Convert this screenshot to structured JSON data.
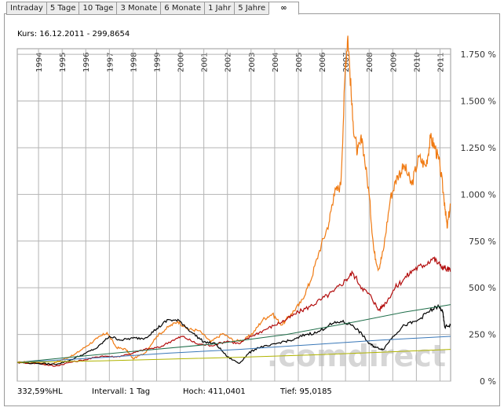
{
  "tabs": [
    {
      "label": "Intraday",
      "active": false
    },
    {
      "label": "5 Tage",
      "active": false
    },
    {
      "label": "10 Tage",
      "active": false
    },
    {
      "label": "3 Monate",
      "active": false
    },
    {
      "label": "6 Monate",
      "active": false
    },
    {
      "label": "1 Jahr",
      "active": false
    },
    {
      "label": "5 Jahre",
      "active": false
    },
    {
      "label": "∞",
      "active": true
    }
  ],
  "header": {
    "kurs": "Kurs: 16.12.2011 - 299,8654"
  },
  "footer": {
    "hl": "332,59%HL",
    "intervall": "Intervall: 1 Tag",
    "hoch": "Hoch: 411,0401",
    "tief": "Tief: 95,0185"
  },
  "watermark": ".comdirect",
  "colors": {
    "orange": "#f07a12",
    "red": "#b30d0d",
    "black": "#000000",
    "green": "#1f6e4a",
    "blue": "#3a78b8",
    "olive": "#b0b400",
    "grid": "#b4b4b4"
  },
  "chart_data": {
    "type": "line",
    "x_tick_labels": [
      "1994",
      "1995",
      "1996",
      "1997",
      "1998",
      "1999",
      "2000",
      "2001",
      "2002",
      "2003",
      "2004",
      "2005",
      "2006",
      "2007",
      "2008",
      "2009",
      "2010",
      "2011"
    ],
    "y_tick_labels": [
      "0 %",
      "250 %",
      "500 %",
      "750 %",
      "1.000 %",
      "1.250 %",
      "1.500 %",
      "1.750 %"
    ],
    "y_ticks": [
      0,
      250,
      500,
      750,
      1000,
      1250,
      1500,
      1750
    ],
    "ylim": [
      0,
      1780
    ],
    "xlim": [
      1993.6,
      2011.95
    ],
    "grid": true,
    "series": [
      {
        "color": "orange",
        "points": [
          [
            1993.6,
            100
          ],
          [
            1994.2,
            105
          ],
          [
            1995.0,
            90
          ],
          [
            1995.5,
            115
          ],
          [
            1996.0,
            140
          ],
          [
            1996.5,
            185
          ],
          [
            1997.0,
            230
          ],
          [
            1997.4,
            260
          ],
          [
            1997.8,
            180
          ],
          [
            1998.2,
            170
          ],
          [
            1998.5,
            120
          ],
          [
            1999.0,
            150
          ],
          [
            1999.5,
            240
          ],
          [
            2000.0,
            290
          ],
          [
            2000.4,
            320
          ],
          [
            2000.8,
            280
          ],
          [
            2001.3,
            270
          ],
          [
            2001.8,
            210
          ],
          [
            2002.3,
            255
          ],
          [
            2002.8,
            215
          ],
          [
            2003.2,
            220
          ],
          [
            2003.6,
            260
          ],
          [
            2004.0,
            330
          ],
          [
            2004.4,
            360
          ],
          [
            2004.8,
            300
          ],
          [
            2005.2,
            360
          ],
          [
            2005.6,
            420
          ],
          [
            2006.0,
            530
          ],
          [
            2006.4,
            700
          ],
          [
            2006.8,
            850
          ],
          [
            2007.0,
            1000
          ],
          [
            2007.3,
            1050
          ],
          [
            2007.5,
            1700
          ],
          [
            2007.6,
            1850
          ],
          [
            2007.8,
            1400
          ],
          [
            2008.0,
            1220
          ],
          [
            2008.2,
            1300
          ],
          [
            2008.5,
            1000
          ],
          [
            2008.7,
            700
          ],
          [
            2008.9,
            600
          ],
          [
            2009.1,
            700
          ],
          [
            2009.4,
            980
          ],
          [
            2009.7,
            1100
          ],
          [
            2010.0,
            1150
          ],
          [
            2010.3,
            1050
          ],
          [
            2010.6,
            1200
          ],
          [
            2010.9,
            1150
          ],
          [
            2011.1,
            1300
          ],
          [
            2011.3,
            1250
          ],
          [
            2011.5,
            1150
          ],
          [
            2011.7,
            950
          ],
          [
            2011.8,
            820
          ],
          [
            2011.95,
            950
          ]
        ]
      },
      {
        "color": "red",
        "points": [
          [
            1993.6,
            100
          ],
          [
            1994.5,
            95
          ],
          [
            1995.2,
            80
          ],
          [
            1995.8,
            100
          ],
          [
            1996.5,
            115
          ],
          [
            1997.2,
            135
          ],
          [
            1997.8,
            130
          ],
          [
            1998.5,
            150
          ],
          [
            1999.0,
            170
          ],
          [
            1999.6,
            180
          ],
          [
            2000.2,
            220
          ],
          [
            2000.6,
            240
          ],
          [
            2001.2,
            200
          ],
          [
            2001.8,
            190
          ],
          [
            2002.5,
            215
          ],
          [
            2003.0,
            200
          ],
          [
            2003.5,
            240
          ],
          [
            2004.0,
            270
          ],
          [
            2004.5,
            300
          ],
          [
            2005.0,
            330
          ],
          [
            2005.5,
            370
          ],
          [
            2006.0,
            400
          ],
          [
            2006.5,
            440
          ],
          [
            2007.0,
            480
          ],
          [
            2007.5,
            540
          ],
          [
            2007.8,
            580
          ],
          [
            2008.2,
            500
          ],
          [
            2008.6,
            450
          ],
          [
            2008.9,
            380
          ],
          [
            2009.2,
            420
          ],
          [
            2009.6,
            500
          ],
          [
            2010.0,
            550
          ],
          [
            2010.4,
            600
          ],
          [
            2010.8,
            620
          ],
          [
            2011.2,
            660
          ],
          [
            2011.5,
            620
          ],
          [
            2011.8,
            600
          ],
          [
            2011.95,
            590
          ]
        ]
      },
      {
        "color": "black",
        "points": [
          [
            1993.6,
            100
          ],
          [
            1994.5,
            95
          ],
          [
            1995.2,
            90
          ],
          [
            1995.8,
            110
          ],
          [
            1996.5,
            150
          ],
          [
            1997.0,
            180
          ],
          [
            1997.5,
            240
          ],
          [
            1998.0,
            220
          ],
          [
            1998.5,
            230
          ],
          [
            1999.0,
            230
          ],
          [
            1999.5,
            280
          ],
          [
            2000.0,
            330
          ],
          [
            2000.5,
            320
          ],
          [
            2001.0,
            260
          ],
          [
            2001.5,
            210
          ],
          [
            2002.0,
            200
          ],
          [
            2002.5,
            130
          ],
          [
            2003.0,
            95
          ],
          [
            2003.4,
            150
          ],
          [
            2003.8,
            180
          ],
          [
            2004.3,
            190
          ],
          [
            2004.8,
            210
          ],
          [
            2005.3,
            220
          ],
          [
            2005.8,
            250
          ],
          [
            2006.3,
            260
          ],
          [
            2006.8,
            300
          ],
          [
            2007.3,
            320
          ],
          [
            2007.8,
            300
          ],
          [
            2008.2,
            250
          ],
          [
            2008.5,
            200
          ],
          [
            2008.8,
            180
          ],
          [
            2009.1,
            170
          ],
          [
            2009.5,
            240
          ],
          [
            2010.0,
            300
          ],
          [
            2010.5,
            320
          ],
          [
            2011.0,
            370
          ],
          [
            2011.4,
            400
          ],
          [
            2011.6,
            380
          ],
          [
            2011.7,
            290
          ],
          [
            2011.95,
            300
          ]
        ]
      },
      {
        "color": "green",
        "points": [
          [
            1993.6,
            100
          ],
          [
            1996,
            130
          ],
          [
            1999,
            165
          ],
          [
            2002,
            200
          ],
          [
            2005,
            250
          ],
          [
            2008,
            320
          ],
          [
            2010,
            370
          ],
          [
            2011.5,
            400
          ],
          [
            2011.95,
            410
          ]
        ]
      },
      {
        "color": "blue",
        "points": [
          [
            1993.6,
            100
          ],
          [
            1997,
            125
          ],
          [
            2000,
            150
          ],
          [
            2003,
            170
          ],
          [
            2006,
            195
          ],
          [
            2009,
            220
          ],
          [
            2011.95,
            240
          ]
        ]
      },
      {
        "color": "olive",
        "points": [
          [
            1993.6,
            100
          ],
          [
            1997,
            108
          ],
          [
            2000,
            118
          ],
          [
            2003,
            128
          ],
          [
            2006,
            140
          ],
          [
            2009,
            155
          ],
          [
            2011.95,
            170
          ]
        ]
      }
    ]
  }
}
